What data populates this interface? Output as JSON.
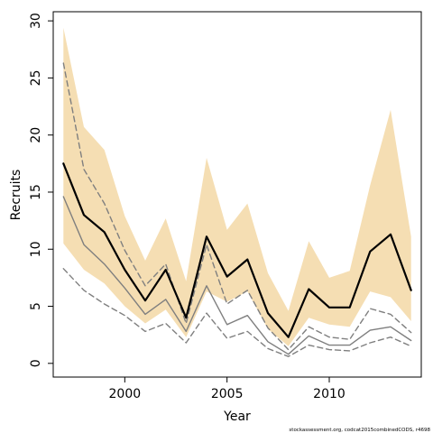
{
  "chart_data": {
    "type": "line",
    "xlabel": "Year",
    "ylabel": "Recruits",
    "xlim": [
      1996.5,
      2014.5
    ],
    "ylim": [
      -1.2,
      30.8
    ],
    "x_ticks": [
      2000,
      2005,
      2010
    ],
    "y_ticks": [
      0,
      5,
      10,
      15,
      20,
      25,
      30
    ],
    "grid": false,
    "legend": "none",
    "caption": "stockassessment.org, codcat2015combinedCODS, r4698",
    "x": [
      1997,
      1998,
      1999,
      2000,
      2001,
      2002,
      2003,
      2004,
      2005,
      2006,
      2007,
      2008,
      2009,
      2010,
      2011,
      2012,
      2013,
      2014
    ],
    "band": {
      "color": "#f5deb3",
      "upper": [
        29.4,
        20.7,
        18.7,
        12.9,
        9.0,
        12.7,
        7.2,
        18.0,
        11.7,
        14.0,
        7.9,
        4.6,
        10.7,
        7.5,
        8.1,
        15.6,
        22.2,
        11.1
      ],
      "lower": [
        10.5,
        8.2,
        7.0,
        5.0,
        3.5,
        4.7,
        2.3,
        6.3,
        5.4,
        6.3,
        3.0,
        1.5,
        4.0,
        3.4,
        3.2,
        6.3,
        5.8,
        3.7
      ]
    },
    "series": [
      {
        "role": "estimate",
        "color": "#000000",
        "style": "solid",
        "width": 2.2,
        "values": [
          17.5,
          13.0,
          11.5,
          8.2,
          5.5,
          8.2,
          4.0,
          11.1,
          7.6,
          9.1,
          4.4,
          2.3,
          6.5,
          4.9,
          4.9,
          9.8,
          11.3,
          6.4
        ]
      },
      {
        "role": "estimate",
        "color": "#7f7f7f",
        "style": "solid",
        "width": 1.4,
        "values": [
          14.6,
          10.4,
          8.7,
          6.6,
          4.3,
          5.6,
          2.8,
          6.8,
          3.4,
          4.2,
          1.9,
          0.8,
          2.4,
          1.6,
          1.6,
          2.9,
          3.2,
          2.0
        ]
      },
      {
        "role": "upper-bound",
        "color": "#7f7f7f",
        "style": "dashed",
        "width": 1.4,
        "values": [
          26.3,
          17.0,
          14.0,
          9.9,
          6.8,
          8.7,
          3.5,
          10.4,
          5.2,
          6.4,
          3.1,
          1.2,
          3.2,
          2.3,
          2.1,
          4.8,
          4.3,
          2.7
        ]
      },
      {
        "role": "lower-bound",
        "color": "#7f7f7f",
        "style": "dashed",
        "width": 1.4,
        "values": [
          8.3,
          6.4,
          5.2,
          4.2,
          2.8,
          3.5,
          1.8,
          4.4,
          2.2,
          2.8,
          1.3,
          0.6,
          1.6,
          1.2,
          1.1,
          1.8,
          2.3,
          1.5
        ]
      }
    ]
  }
}
